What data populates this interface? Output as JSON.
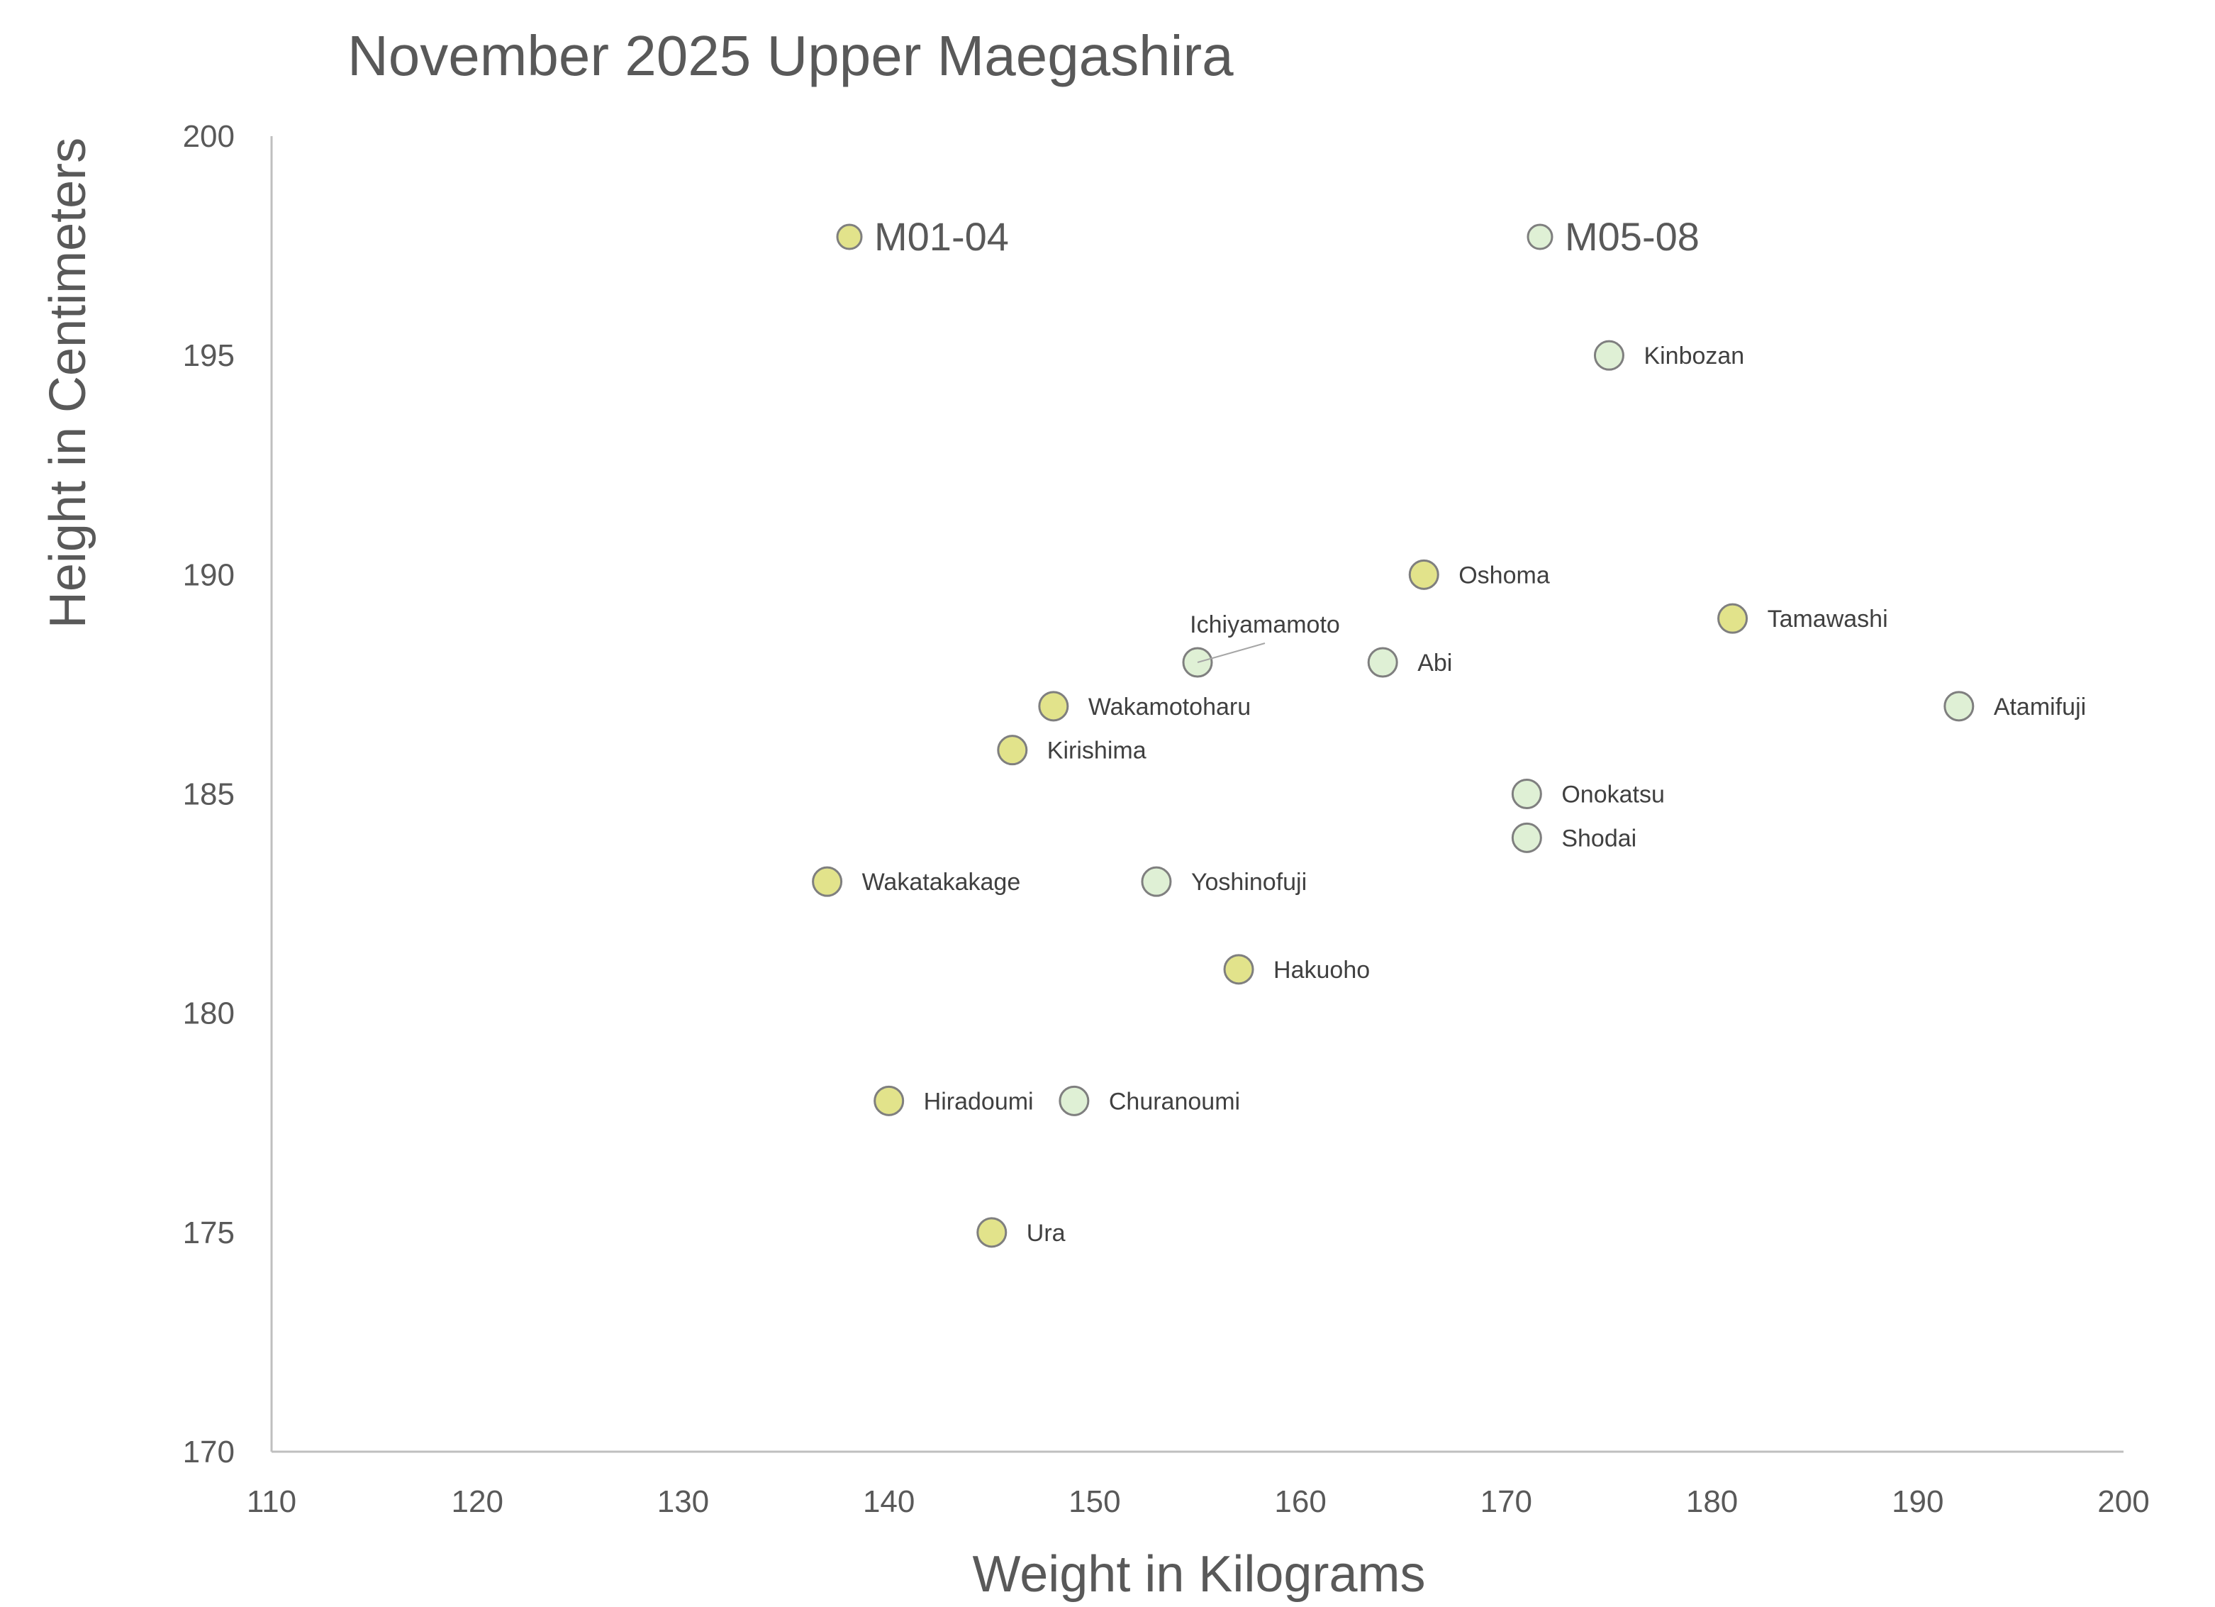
{
  "chart_data": {
    "type": "scatter",
    "title": "November 2025 Upper Maegashira",
    "xlabel": "Weight in Kilograms",
    "ylabel": "Height in Centimeters",
    "xlim": [
      110,
      200
    ],
    "ylim": [
      170,
      200
    ],
    "xticks": [
      110,
      120,
      130,
      140,
      150,
      160,
      170,
      180,
      190,
      200
    ],
    "yticks": [
      170,
      175,
      180,
      185,
      190,
      195,
      200
    ],
    "grid": false,
    "legend_placement": "top",
    "series": [
      {
        "name": "M01-04",
        "color": "#e2e38b",
        "points": [
          {
            "label": "Oshoma",
            "x": 166,
            "y": 190
          },
          {
            "label": "Tamawashi",
            "x": 181,
            "y": 189
          },
          {
            "label": "Wakamotoharu",
            "x": 148,
            "y": 187
          },
          {
            "label": "Kirishima",
            "x": 146,
            "y": 186
          },
          {
            "label": "Wakatakakage",
            "x": 137,
            "y": 183
          },
          {
            "label": "Hakuoho",
            "x": 157,
            "y": 181
          },
          {
            "label": "Hiradoumi",
            "x": 140,
            "y": 178
          },
          {
            "label": "Ura",
            "x": 145,
            "y": 175
          }
        ]
      },
      {
        "name": "M05-08",
        "color": "#dff0d5",
        "points": [
          {
            "label": "Kinbozan",
            "x": 175,
            "y": 195
          },
          {
            "label": "Ichiyamamoto",
            "x": 155,
            "y": 188
          },
          {
            "label": "Abi",
            "x": 164,
            "y": 188
          },
          {
            "label": "Atamifuji",
            "x": 192,
            "y": 187
          },
          {
            "label": "Onokatsu",
            "x": 171,
            "y": 185
          },
          {
            "label": "Shodai",
            "x": 171,
            "y": 184
          },
          {
            "label": "Yoshinofuji",
            "x": 153,
            "y": 183
          },
          {
            "label": "Churanoumi",
            "x": 149,
            "y": 178
          }
        ]
      }
    ]
  }
}
